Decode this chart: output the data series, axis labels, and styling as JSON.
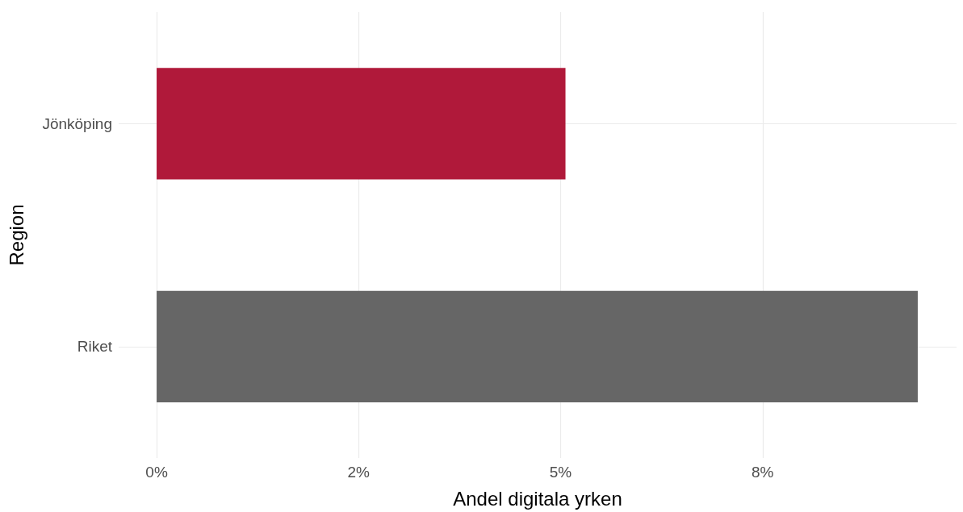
{
  "chart_data": {
    "type": "bar",
    "orientation": "horizontal",
    "xlabel": "Andel digitala yrken",
    "ylabel": "Region",
    "categories": [
      "Jönköping",
      "Riket"
    ],
    "values": [
      5.06,
      9.42
    ],
    "colors": [
      "#b0193a",
      "#666666"
    ],
    "xlim": [
      -0.47,
      9.9
    ],
    "xticks": [
      {
        "value": 0,
        "label": "0%"
      },
      {
        "value": 2.5,
        "label": "2%"
      },
      {
        "value": 5,
        "label": "5%"
      },
      {
        "value": 7.5,
        "label": "8%"
      }
    ],
    "grid": true
  }
}
